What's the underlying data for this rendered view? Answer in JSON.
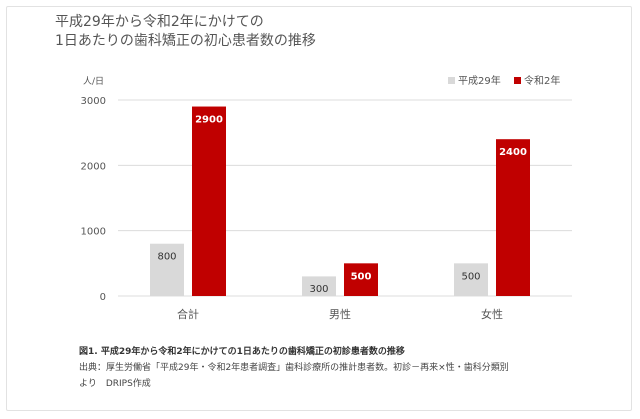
{
  "title_lines": [
    "平成29年から令和2年にかけての",
    "1日あたりの歯科矯正の初心患者数の推移"
  ],
  "caption": {
    "title": "図1. 平成29年から令和2年にかけての1日あたりの歯科矯正の初診患者数の推移",
    "source_line1": "出典：厚生労働省「平成29年・令和2年患者調査」歯科診療所の推計患者数。初診－再来×性・歯科分類別",
    "source_line2": "より　DRIPS作成"
  },
  "colors": {
    "series1": "#d9d9d9",
    "series2": "#c00000",
    "gridline": "#dcdcdc",
    "axis_text": "#555555"
  },
  "chart_data": {
    "type": "bar",
    "unit_label": "人/日",
    "categories": [
      "合計",
      "男性",
      "女性"
    ],
    "series": [
      {
        "name": "平成29年",
        "values": [
          800,
          300,
          500
        ]
      },
      {
        "name": "令和2年",
        "values": [
          2900,
          500,
          2400
        ]
      }
    ],
    "ylim": [
      0,
      3000
    ],
    "yticks": [
      0,
      1000,
      2000,
      3000
    ],
    "grid": true,
    "legend_position": "top-right",
    "data_labels": true
  }
}
